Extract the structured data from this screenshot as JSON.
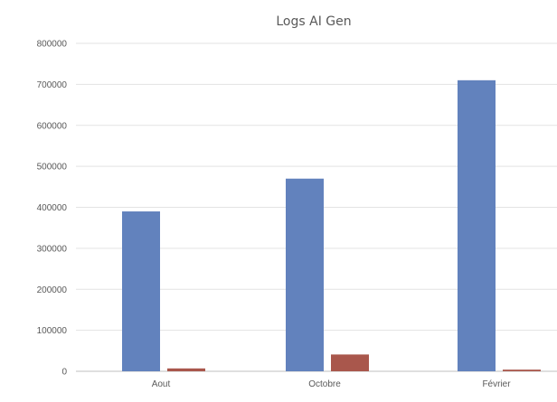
{
  "chart_data": {
    "type": "bar",
    "title": "Logs AI Gen",
    "categories": [
      "Aout",
      "Octobre",
      "Février"
    ],
    "series": [
      {
        "values": [
          390000,
          470000,
          710000
        ],
        "color": "#6282bd"
      },
      {
        "values": [
          7000,
          41000,
          4000
        ],
        "color": "#a9574c"
      }
    ],
    "y_ticks": [
      0,
      100000,
      200000,
      300000,
      400000,
      500000,
      600000,
      700000,
      800000
    ],
    "ylim": [
      0,
      800000
    ],
    "grid": true,
    "legend": "none"
  }
}
